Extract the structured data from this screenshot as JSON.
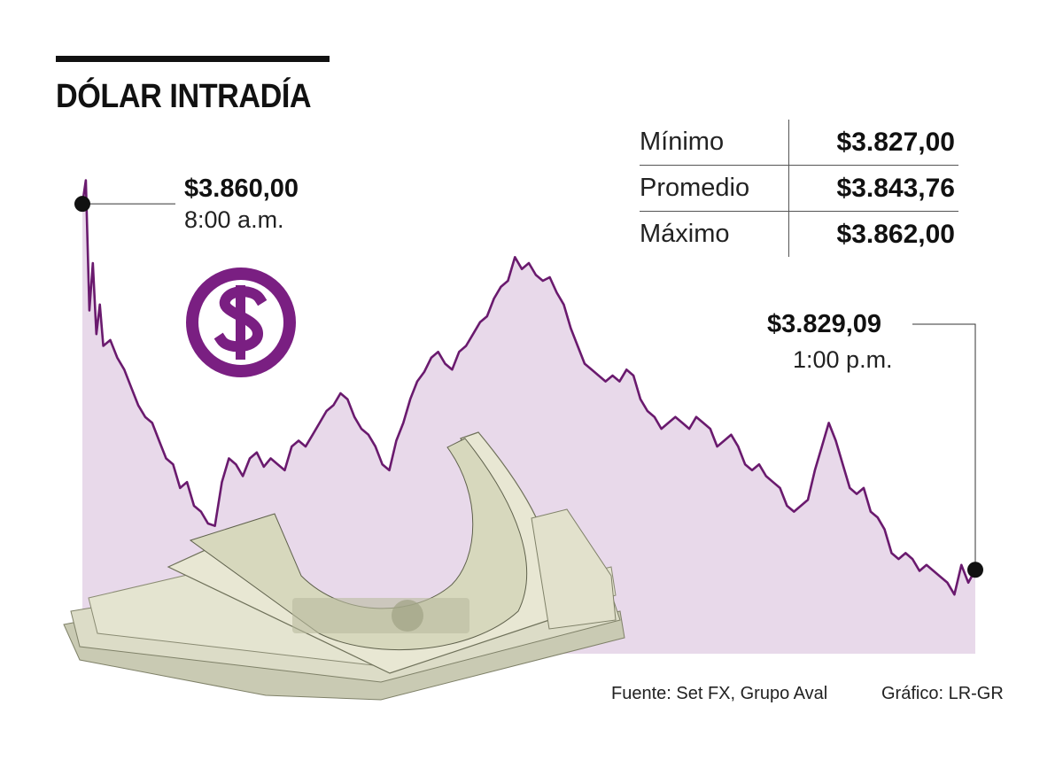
{
  "title": "DÓLAR INTRADÍA",
  "stats": [
    {
      "label": "Mínimo",
      "value": "$3.827,00"
    },
    {
      "label": "Promedio",
      "value": "$3.843,76"
    },
    {
      "label": "Máximo",
      "value": "$3.862,00"
    }
  ],
  "annotations": {
    "open": {
      "value": "$3.860,00",
      "time": "8:00 a.m."
    },
    "close": {
      "value": "$3.829,09",
      "time": "1:00 p.m."
    }
  },
  "footer": {
    "source": "Fuente: Set FX, Grupo Aval",
    "credit": "Gráfico: LR-GR"
  },
  "colors": {
    "line": "#6a1a6e",
    "area": "#e8d9ea",
    "icon": "#7a1f82"
  },
  "icon": "dollar-coin-icon",
  "chart_data": {
    "type": "area",
    "x_start": "8:00 a.m.",
    "x_end": "1:00 p.m.",
    "ylim": [
      3822,
      3866
    ],
    "points": [
      [
        0,
        3860.0
      ],
      [
        1,
        3862.0
      ],
      [
        2,
        3851.0
      ],
      [
        3,
        3855.0
      ],
      [
        4,
        3849.0
      ],
      [
        5,
        3851.5
      ],
      [
        6,
        3848.0
      ],
      [
        8,
        3848.5
      ],
      [
        10,
        3847.0
      ],
      [
        12,
        3846.0
      ],
      [
        14,
        3844.5
      ],
      [
        16,
        3843.0
      ],
      [
        18,
        3842.0
      ],
      [
        20,
        3841.5
      ],
      [
        22,
        3840.0
      ],
      [
        24,
        3838.5
      ],
      [
        26,
        3838.0
      ],
      [
        28,
        3836.0
      ],
      [
        30,
        3836.5
      ],
      [
        32,
        3834.5
      ],
      [
        34,
        3834.0
      ],
      [
        36,
        3833.0
      ],
      [
        38,
        3832.8
      ],
      [
        40,
        3836.5
      ],
      [
        42,
        3838.5
      ],
      [
        44,
        3838.0
      ],
      [
        46,
        3837.0
      ],
      [
        48,
        3838.5
      ],
      [
        50,
        3839.0
      ],
      [
        52,
        3837.8
      ],
      [
        54,
        3838.5
      ],
      [
        56,
        3838.0
      ],
      [
        58,
        3837.5
      ],
      [
        60,
        3839.5
      ],
      [
        62,
        3840.0
      ],
      [
        64,
        3839.5
      ],
      [
        66,
        3840.5
      ],
      [
        68,
        3841.5
      ],
      [
        70,
        3842.5
      ],
      [
        72,
        3843.0
      ],
      [
        74,
        3844.0
      ],
      [
        76,
        3843.5
      ],
      [
        78,
        3842.0
      ],
      [
        80,
        3841.0
      ],
      [
        82,
        3840.5
      ],
      [
        84,
        3839.5
      ],
      [
        86,
        3838.0
      ],
      [
        88,
        3837.5
      ],
      [
        90,
        3840.0
      ],
      [
        92,
        3841.5
      ],
      [
        94,
        3843.5
      ],
      [
        96,
        3845.0
      ],
      [
        98,
        3845.8
      ],
      [
        100,
        3847.0
      ],
      [
        102,
        3847.5
      ],
      [
        104,
        3846.5
      ],
      [
        106,
        3846.0
      ],
      [
        108,
        3847.5
      ],
      [
        110,
        3848.0
      ],
      [
        112,
        3849.0
      ],
      [
        114,
        3850.0
      ],
      [
        116,
        3850.5
      ],
      [
        118,
        3852.0
      ],
      [
        120,
        3853.0
      ],
      [
        122,
        3853.5
      ],
      [
        124,
        3855.5
      ],
      [
        126,
        3854.5
      ],
      [
        128,
        3855.0
      ],
      [
        130,
        3854.0
      ],
      [
        132,
        3853.5
      ],
      [
        134,
        3853.8
      ],
      [
        136,
        3852.5
      ],
      [
        138,
        3851.5
      ],
      [
        140,
        3849.5
      ],
      [
        142,
        3848.0
      ],
      [
        144,
        3846.5
      ],
      [
        146,
        3846.0
      ],
      [
        148,
        3845.5
      ],
      [
        150,
        3845.0
      ],
      [
        152,
        3845.5
      ],
      [
        154,
        3845.0
      ],
      [
        156,
        3846.0
      ],
      [
        158,
        3845.5
      ],
      [
        160,
        3843.5
      ],
      [
        162,
        3842.5
      ],
      [
        164,
        3842.0
      ],
      [
        166,
        3841.0
      ],
      [
        168,
        3841.5
      ],
      [
        170,
        3842.0
      ],
      [
        172,
        3841.5
      ],
      [
        174,
        3841.0
      ],
      [
        176,
        3842.0
      ],
      [
        178,
        3841.5
      ],
      [
        180,
        3841.0
      ],
      [
        182,
        3839.5
      ],
      [
        184,
        3840.0
      ],
      [
        186,
        3840.5
      ],
      [
        188,
        3839.5
      ],
      [
        190,
        3838.0
      ],
      [
        192,
        3837.5
      ],
      [
        194,
        3838.0
      ],
      [
        196,
        3837.0
      ],
      [
        198,
        3836.5
      ],
      [
        200,
        3836.0
      ],
      [
        202,
        3834.5
      ],
      [
        204,
        3834.0
      ],
      [
        206,
        3834.5
      ],
      [
        208,
        3835.0
      ],
      [
        210,
        3837.5
      ],
      [
        212,
        3839.5
      ],
      [
        214,
        3841.5
      ],
      [
        216,
        3840.0
      ],
      [
        218,
        3838.0
      ],
      [
        220,
        3836.0
      ],
      [
        222,
        3835.5
      ],
      [
        224,
        3836.0
      ],
      [
        226,
        3834.0
      ],
      [
        228,
        3833.5
      ],
      [
        230,
        3832.5
      ],
      [
        232,
        3830.5
      ],
      [
        234,
        3830.0
      ],
      [
        236,
        3830.5
      ],
      [
        238,
        3830.0
      ],
      [
        240,
        3829.0
      ],
      [
        242,
        3829.5
      ],
      [
        244,
        3829.0
      ],
      [
        246,
        3828.5
      ],
      [
        248,
        3828.0
      ],
      [
        250,
        3827.0
      ],
      [
        252,
        3829.5
      ],
      [
        254,
        3828.0
      ],
      [
        256,
        3829.09
      ]
    ]
  }
}
